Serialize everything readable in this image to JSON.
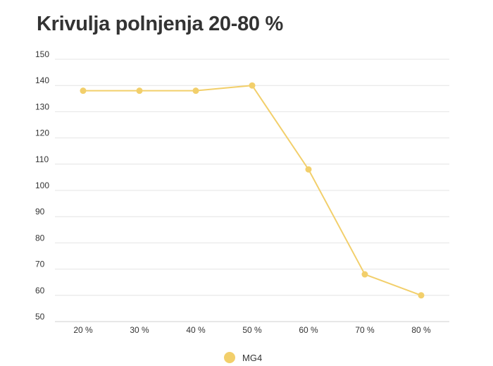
{
  "chart_data": {
    "type": "line",
    "title": "Krivulja polnjenja 20-80 %",
    "categories": [
      "20 %",
      "30 %",
      "40 %",
      "50 %",
      "60 %",
      "70 %",
      "80 %"
    ],
    "series": [
      {
        "name": "MG4",
        "values": [
          138,
          138,
          138,
          140,
          108,
          68,
          60
        ],
        "color": "#f2cf6b"
      }
    ],
    "y_ticks": [
      "150",
      "140",
      "130",
      "120",
      "110",
      "100",
      "90",
      "80",
      "70",
      "60",
      "50"
    ],
    "ylim": [
      50,
      150
    ],
    "grid": true,
    "legend_position": "bottom-center"
  }
}
